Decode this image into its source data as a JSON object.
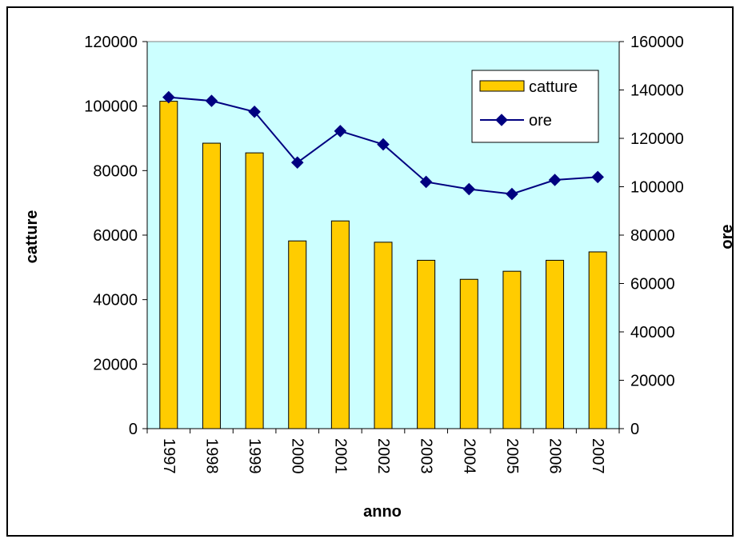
{
  "chart_data": {
    "type": "bar+line",
    "categories": [
      "1997",
      "1998",
      "1999",
      "2000",
      "2001",
      "2002",
      "2003",
      "2004",
      "2005",
      "2006",
      "2007"
    ],
    "series": [
      {
        "name": "catture",
        "type": "bar",
        "axis": "left",
        "values": [
          101500,
          88500,
          85500,
          58200,
          64400,
          57800,
          52200,
          46300,
          48800,
          52200,
          54800
        ]
      },
      {
        "name": "ore",
        "type": "line",
        "axis": "right",
        "values": [
          137000,
          135500,
          131000,
          110000,
          123000,
          117500,
          102000,
          99000,
          97000,
          102800,
          104000
        ]
      }
    ],
    "xlabel": "anno",
    "ylabel": "catture",
    "y2label": "ore",
    "ylim": [
      0,
      120000
    ],
    "y2lim": [
      0,
      160000
    ],
    "yticks": [
      "0",
      "20000",
      "40000",
      "60000",
      "80000",
      "100000",
      "120000"
    ],
    "y2ticks": [
      "0",
      "20000",
      "40000",
      "60000",
      "80000",
      "100000",
      "120000",
      "140000",
      "160000"
    ],
    "legend_position": "top-right",
    "grid": false,
    "colors": {
      "plot_background": "#ccffff",
      "bar_fill": "#ffcc00",
      "bar_stroke": "#000000",
      "line": "#000080"
    }
  }
}
